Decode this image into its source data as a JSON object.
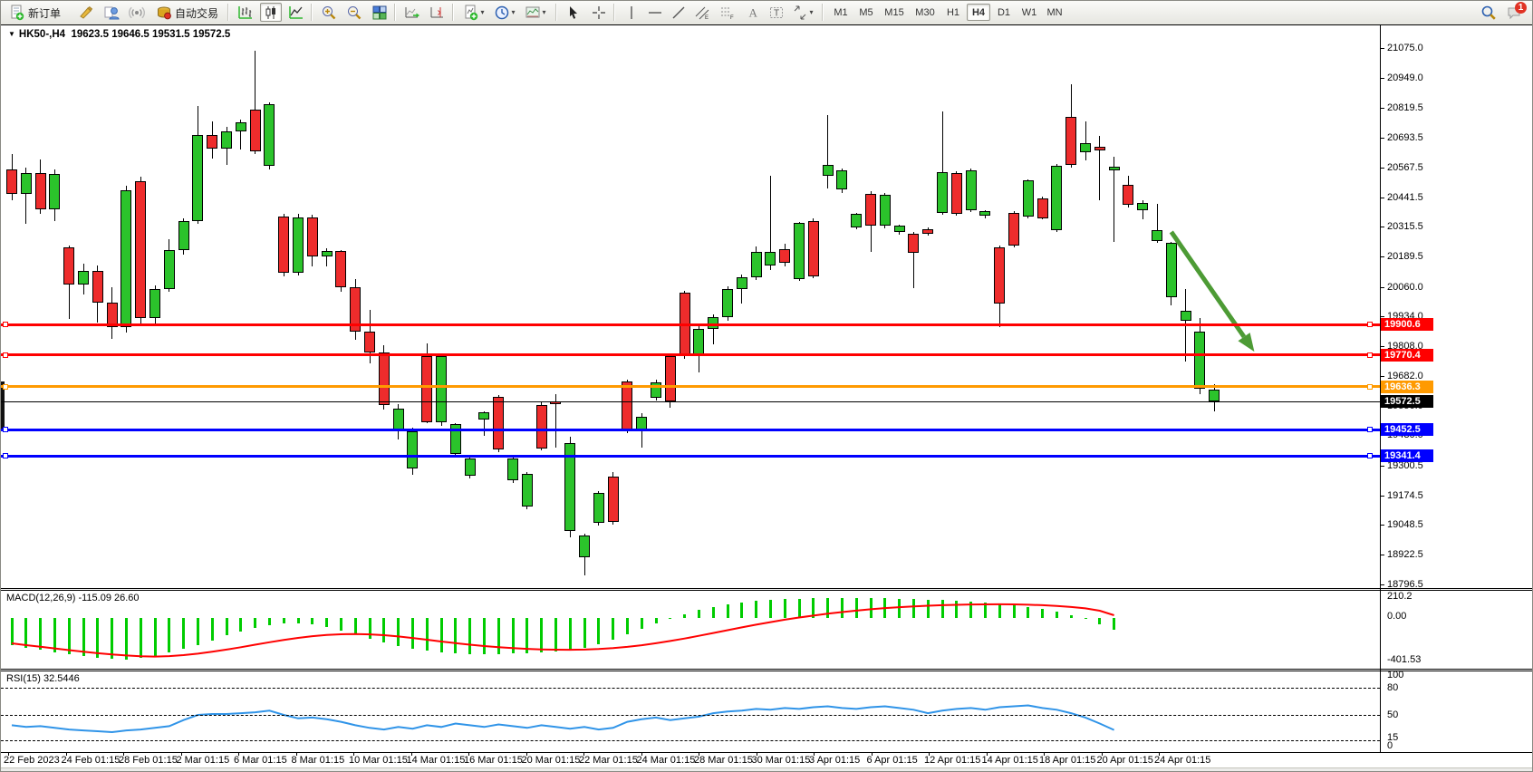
{
  "toolbar": {
    "new_order_label": "新订单",
    "auto_trading_label": "自动交易",
    "timeframes": [
      "M1",
      "M5",
      "M15",
      "M30",
      "H1",
      "H4",
      "D1",
      "W1",
      "MN"
    ],
    "active_timeframe": "H4",
    "notification_badge": "1"
  },
  "icons": {
    "new-order-icon": "document-with-green-plus",
    "crayon-icon": "yellow-crayon",
    "expert-advisor-icon": "blue-expert-advisor",
    "signals-icon": "broadcast-signal",
    "auto-trading-icon": "gold-drum-red-dot",
    "bar-chart-icon": "ohlc-bars",
    "candlestick-icon": "candlesticks",
    "line-chart-icon": "line-chart",
    "zoom-in-icon": "magnifier-plus",
    "zoom-out-icon": "magnifier-minus",
    "tile-windows-icon": "tiled-windows",
    "auto-scroll-icon": "chart-auto-scroll",
    "chart-shift-icon": "chart-shift",
    "indicators-icon": "document-plus-dropdown",
    "periods-icon": "clock-dropdown",
    "templates-icon": "chart-template-dropdown",
    "cursor-icon": "pointer-arrow",
    "crosshair-icon": "crosshair",
    "vline-icon": "vertical-line",
    "hline-icon": "horizontal-line",
    "trendline-icon": "trend-line",
    "channel-icon": "equidistant-channel",
    "fibonacci-icon": "fibonacci-retracement",
    "text-icon": "letter-A",
    "label-icon": "text-label-T",
    "arrows-icon": "arrow-objects",
    "search-icon": "magnifier",
    "chat-icon": "chat-bubble"
  },
  "chart": {
    "symbol": "HK50-,H4",
    "ohlc_text": "19623.5 19646.5 19531.5 19572.5",
    "macd_label": "MACD(12,26,9) -115.09 26.60",
    "rsi_label": "RSI(15) 32.5446",
    "macd_axis": [
      "210.2",
      "0.00",
      "-401.53"
    ],
    "rsi_axis": [
      "100",
      "80",
      "50",
      "15",
      "0"
    ],
    "price_axis_ticks": [
      "21075.0",
      "20949.0",
      "20819.5",
      "20693.5",
      "20567.5",
      "20441.5",
      "20315.5",
      "20189.5",
      "20060.0",
      "19934.0",
      "19808.0",
      "19682.0",
      "19556.0",
      "19430.0",
      "19300.5",
      "19174.5",
      "19048.5",
      "18922.5",
      "18796.5"
    ],
    "x_labels": [
      "22 Feb 2023",
      "24 Feb 01:15",
      "28 Feb 01:15",
      "2 Mar 01:15",
      "6 Mar 01:15",
      "8 Mar 01:15",
      "10 Mar 01:15",
      "14 Mar 01:15",
      "16 Mar 01:15",
      "20 Mar 01:15",
      "22 Mar 01:15",
      "24 Mar 01:15",
      "28 Mar 01:15",
      "30 Mar 01:15",
      "3 Apr 01:15",
      "6 Apr 01:15",
      "12 Apr 01:15",
      "14 Apr 01:15",
      "18 Apr 01:15",
      "20 Apr 01:15",
      "24 Apr 01:15"
    ],
    "colors": {
      "bull": "#2bc32b",
      "bear": "#ee2c2c",
      "wick": "#000000",
      "macd_hist": "#00cc00",
      "macd_signal": "#ff0000",
      "rsi_line": "#3094e8",
      "arrow": "#4d9b35",
      "line_red": "#ff0000",
      "line_orange": "#ff9a00",
      "line_blue": "#0000ff",
      "line_black": "#000000"
    },
    "hlines": [
      {
        "price": 19900.6,
        "label": "19900.6",
        "color": "#ff0000",
        "thickness": 3
      },
      {
        "price": 19770.4,
        "label": "19770.4",
        "color": "#ff0000",
        "thickness": 3
      },
      {
        "price": 19636.3,
        "label": "19636.3",
        "color": "#ff9a00",
        "thickness": 3
      },
      {
        "price": 19572.5,
        "label": "19572.5",
        "color": "#000000",
        "thickness": 1,
        "is_price_line": true
      },
      {
        "price": 19452.5,
        "label": "19452.5",
        "color": "#0000ff",
        "thickness": 3
      },
      {
        "price": 19341.4,
        "label": "19341.4",
        "color": "#0000ff",
        "thickness": 3
      }
    ]
  },
  "chart_data": {
    "type": "candlestick",
    "symbol": "HK50-",
    "timeframe": "H4",
    "title": "HK50-,H4",
    "last_ohlc": {
      "open": 19623.5,
      "high": 19646.5,
      "low": 19531.5,
      "close": 19572.5
    },
    "price_axis_range": [
      18796.5,
      21075.0
    ],
    "horizontal_levels": [
      19900.6,
      19770.4,
      19636.3,
      19572.5,
      19452.5,
      19341.4
    ],
    "candles": [
      [
        20560,
        20625,
        20430,
        20455
      ],
      [
        20455,
        20565,
        20330,
        20545
      ],
      [
        20545,
        20600,
        20370,
        20390
      ],
      [
        20390,
        20560,
        20340,
        20540
      ],
      [
        20230,
        20235,
        19925,
        20070
      ],
      [
        20070,
        20160,
        20028,
        20128
      ],
      [
        20128,
        20150,
        19908,
        19995
      ],
      [
        19995,
        20060,
        19838,
        19890
      ],
      [
        19890,
        20490,
        19868,
        20470
      ],
      [
        20510,
        20530,
        19905,
        19928
      ],
      [
        19928,
        20065,
        19906,
        20052
      ],
      [
        20052,
        20262,
        20040,
        20215
      ],
      [
        20215,
        20352,
        20198,
        20338
      ],
      [
        20338,
        20830,
        20328,
        20705
      ],
      [
        20705,
        20762,
        20606,
        20648
      ],
      [
        20648,
        20742,
        20578,
        20722
      ],
      [
        20722,
        20772,
        20642,
        20758
      ],
      [
        20815,
        21063,
        20624,
        20638
      ],
      [
        20575,
        20845,
        20560,
        20835
      ],
      [
        20358,
        20370,
        20105,
        20120
      ],
      [
        20120,
        20372,
        20110,
        20355
      ],
      [
        20355,
        20368,
        20146,
        20188
      ],
      [
        20188,
        20224,
        20146,
        20212
      ],
      [
        20212,
        20218,
        20038,
        20060
      ],
      [
        20060,
        20092,
        19836,
        19872
      ],
      [
        19872,
        19962,
        19736,
        19780
      ],
      [
        19780,
        19812,
        19538,
        19560
      ],
      [
        19455,
        19562,
        19413,
        19543
      ],
      [
        19290,
        19462,
        19260,
        19447
      ],
      [
        19766,
        19822,
        19480,
        19487
      ],
      [
        19487,
        19772,
        19468,
        19765
      ],
      [
        19350,
        19482,
        19338,
        19478
      ],
      [
        19258,
        19344,
        19248,
        19332
      ],
      [
        19498,
        19532,
        19426,
        19528
      ],
      [
        19592,
        19602,
        19360,
        19368
      ],
      [
        19238,
        19344,
        19226,
        19330
      ],
      [
        19128,
        19272,
        19116,
        19265
      ],
      [
        19560,
        19574,
        19366,
        19372
      ],
      [
        19572,
        19604,
        19378,
        19570
      ],
      [
        19025,
        19422,
        18998,
        19395
      ],
      [
        18910,
        19012,
        18833,
        19005
      ],
      [
        19058,
        19194,
        19046,
        19185
      ],
      [
        19256,
        19272,
        19050,
        19060
      ],
      [
        19658,
        19666,
        19438,
        19445
      ],
      [
        19445,
        19522,
        19378,
        19510
      ],
      [
        19588,
        19668,
        19578,
        19655
      ],
      [
        19765,
        19772,
        19546,
        19573
      ],
      [
        20036,
        20042,
        19756,
        19765
      ],
      [
        19765,
        19892,
        19698,
        19880
      ],
      [
        19880,
        19942,
        19818,
        19930
      ],
      [
        19930,
        20062,
        19918,
        20050
      ],
      [
        20050,
        20112,
        19988,
        20100
      ],
      [
        20100,
        20232,
        20088,
        20210
      ],
      [
        20153,
        20532,
        20133,
        20210
      ],
      [
        20222,
        20242,
        20148,
        20164
      ],
      [
        20095,
        20336,
        20084,
        20333
      ],
      [
        20340,
        20350,
        20098,
        20106
      ],
      [
        20532,
        20790,
        20478,
        20578
      ],
      [
        20474,
        20562,
        20458,
        20555
      ],
      [
        20314,
        20376,
        20304,
        20372
      ],
      [
        20457,
        20466,
        20210,
        20322
      ],
      [
        20322,
        20458,
        20310,
        20453
      ],
      [
        20295,
        20326,
        20283,
        20322
      ],
      [
        20287,
        20292,
        20055,
        20206
      ],
      [
        20305,
        20312,
        20280,
        20287
      ],
      [
        20375,
        20806,
        20368,
        20548
      ],
      [
        20544,
        20552,
        20362,
        20371
      ],
      [
        20387,
        20562,
        20378,
        20556
      ],
      [
        20363,
        20386,
        20352,
        20383
      ],
      [
        20228,
        20236,
        19890,
        19990
      ],
      [
        20375,
        20382,
        20228,
        20234
      ],
      [
        20360,
        20518,
        20350,
        20513
      ],
      [
        20436,
        20444,
        20346,
        20352
      ],
      [
        20302,
        20582,
        20292,
        20575
      ],
      [
        20782,
        20920,
        20568,
        20578
      ],
      [
        20632,
        20765,
        20598,
        20671
      ],
      [
        20655,
        20702,
        20430,
        20640
      ],
      [
        20555,
        20614,
        20250,
        20570
      ],
      [
        20494,
        20532,
        20398,
        20410
      ],
      [
        20387,
        20430,
        20348,
        20418
      ],
      [
        20256,
        20414,
        20246,
        20302
      ],
      [
        20017,
        20250,
        19982,
        20248
      ],
      [
        19917,
        20052,
        19743,
        19960
      ],
      [
        19627,
        19928,
        19604,
        19870
      ],
      [
        19623.5,
        19646.5,
        19531.5,
        19572.5,
        "g"
      ]
    ],
    "indicators": {
      "macd": {
        "params": "12,26,9",
        "value": -115.09,
        "signal_value": 26.6,
        "axis_range": [
          -401.53,
          210.2
        ],
        "histogram": [
          -260,
          -285,
          -310,
          -330,
          -350,
          -370,
          -385,
          -395,
          -400,
          -385,
          -365,
          -335,
          -300,
          -260,
          -215,
          -170,
          -130,
          -95,
          -70,
          -55,
          -50,
          -60,
          -85,
          -120,
          -160,
          -200,
          -240,
          -270,
          -295,
          -315,
          -330,
          -340,
          -348,
          -352,
          -350,
          -345,
          -338,
          -330,
          -322,
          -315,
          -290,
          -255,
          -210,
          -160,
          -105,
          -55,
          -10,
          35,
          75,
          108,
          132,
          150,
          163,
          173,
          180,
          186,
          189,
          191,
          193,
          193,
          192,
          190,
          187,
          183,
          178,
          172,
          165,
          157,
          148,
          138,
          126,
          108,
          85,
          58,
          28,
          -10,
          -60,
          -115
        ],
        "signal": [
          -245,
          -262,
          -278,
          -294,
          -310,
          -325,
          -340,
          -352,
          -362,
          -370,
          -372,
          -368,
          -358,
          -344,
          -326,
          -305,
          -282,
          -258,
          -234,
          -212,
          -192,
          -176,
          -164,
          -157,
          -155,
          -158,
          -166,
          -178,
          -193,
          -210,
          -227,
          -243,
          -258,
          -271,
          -282,
          -291,
          -298,
          -303,
          -306,
          -307,
          -305,
          -300,
          -291,
          -279,
          -263,
          -244,
          -222,
          -198,
          -172,
          -145,
          -118,
          -91,
          -65,
          -40,
          -17,
          4,
          23,
          41,
          57,
          71,
          84,
          95,
          104,
          112,
          118,
          123,
          127,
          130,
          131,
          132,
          131,
          128,
          123,
          116,
          106,
          93,
          70,
          26.6
        ]
      },
      "rsi": {
        "period": 15,
        "value": 32.5446,
        "levels": [
          80,
          50,
          15
        ],
        "values": [
          38,
          36,
          37,
          35,
          33,
          32,
          31,
          30,
          32,
          33,
          35,
          37,
          44,
          50,
          51,
          51,
          52,
          53,
          55,
          50,
          46,
          47,
          45,
          42,
          38,
          35,
          33,
          36,
          34,
          38,
          36,
          40,
          38,
          36,
          39,
          37,
          35,
          38,
          36,
          34,
          36,
          33,
          35,
          42,
          45,
          47,
          44,
          46,
          48,
          52,
          54,
          55,
          57,
          56,
          58,
          57,
          59,
          60,
          58,
          57,
          59,
          60,
          58,
          56,
          52,
          55,
          57,
          58,
          56,
          59,
          60,
          61,
          58,
          56,
          52,
          47,
          40,
          32.5
        ]
      }
    },
    "annotation_arrow": {
      "from_bar_index": 81,
      "from_price": 20294,
      "to_bar_index": 86.8,
      "to_price": 19785,
      "note": "downtrend-arrow"
    }
  }
}
